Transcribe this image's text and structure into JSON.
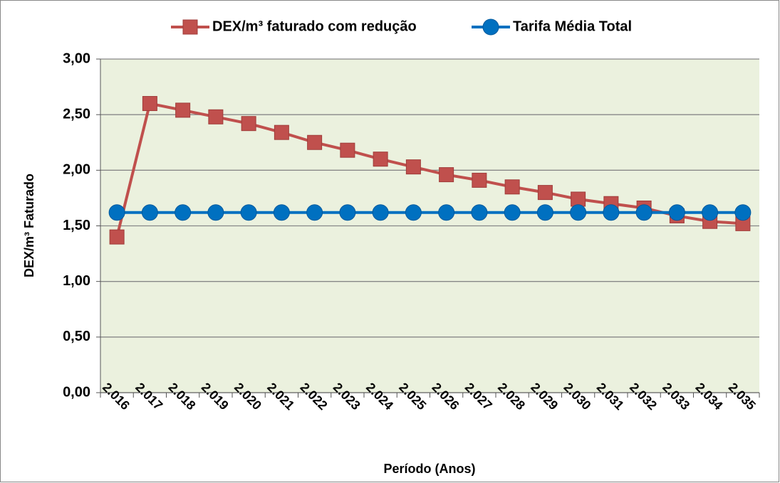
{
  "chart_data": {
    "type": "line",
    "x_label": "Período (Anos)",
    "y_label": "DEX/m³ Faturado",
    "categories": [
      "2.016",
      "2.017",
      "2.018",
      "2.019",
      "2.020",
      "2.021",
      "2.022",
      "2.023",
      "2.024",
      "2.025",
      "2.026",
      "2.027",
      "2.028",
      "2.029",
      "2.030",
      "2.031",
      "2.032",
      "2.033",
      "2.034",
      "2.035"
    ],
    "series": [
      {
        "name": "DEX/m³ faturado com redução",
        "color": "#c0504d",
        "marker": "square",
        "values": [
          1.4,
          2.6,
          2.54,
          2.48,
          2.42,
          2.34,
          2.25,
          2.18,
          2.1,
          2.03,
          1.96,
          1.91,
          1.85,
          1.8,
          1.74,
          1.7,
          1.66,
          1.59,
          1.54,
          1.52
        ]
      },
      {
        "name": "Tarifa Média Total",
        "color": "#0070c0",
        "marker": "circle",
        "values": [
          1.62,
          1.62,
          1.62,
          1.62,
          1.62,
          1.62,
          1.62,
          1.62,
          1.62,
          1.62,
          1.62,
          1.62,
          1.62,
          1.62,
          1.62,
          1.62,
          1.62,
          1.62,
          1.62,
          1.62
        ]
      }
    ],
    "ylim": [
      0,
      3
    ],
    "yticks": [
      {
        "value": 0,
        "label": "0,00"
      },
      {
        "value": 0.5,
        "label": "0,50"
      },
      {
        "value": 1,
        "label": "1,00"
      },
      {
        "value": 1.5,
        "label": "1,50"
      },
      {
        "value": 2,
        "label": "2,00"
      },
      {
        "value": 2.5,
        "label": "2,50"
      },
      {
        "value": 3,
        "label": "3,00"
      }
    ],
    "grid": true,
    "legend": "top"
  }
}
